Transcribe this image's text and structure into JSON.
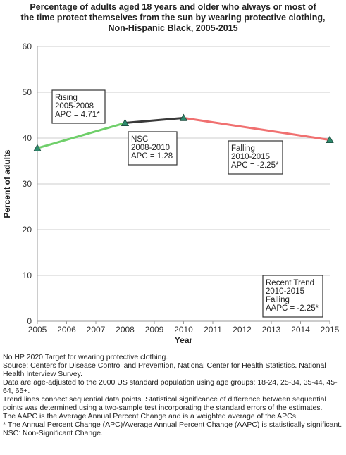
{
  "title_lines": [
    "Percentage of adults aged 18 years and older who always or most of",
    "the time protect themselves from the sun by wearing protective clothing,",
    "Non-Hispanic Black,  2005-2015"
  ],
  "chart_data": {
    "type": "line",
    "title": "Percentage of adults aged 18 years and older who always or most of the time protect themselves from the sun by wearing protective clothing, Non-Hispanic Black,  2005-2015",
    "xlabel": "Year",
    "ylabel": "Percent of adults",
    "xlim": [
      2005,
      2015
    ],
    "ylim": [
      0,
      60
    ],
    "x_ticks": [
      2005,
      2006,
      2007,
      2008,
      2009,
      2010,
      2011,
      2012,
      2013,
      2014,
      2015
    ],
    "y_ticks": [
      0,
      10,
      20,
      30,
      40,
      50,
      60
    ],
    "grid": true,
    "points": [
      {
        "x": 2005,
        "y": 37.8
      },
      {
        "x": 2008,
        "y": 43.3
      },
      {
        "x": 2010,
        "y": 44.4
      },
      {
        "x": 2015,
        "y": 39.6
      }
    ],
    "trend_segments": [
      {
        "x": [
          2005,
          2008
        ],
        "y": [
          37.8,
          43.3
        ],
        "color": "#6fcf6a"
      },
      {
        "x": [
          2008,
          2010
        ],
        "y": [
          43.3,
          44.4
        ],
        "color": "#3a3a3a"
      },
      {
        "x": [
          2010,
          2015
        ],
        "y": [
          44.4,
          39.6
        ],
        "color": "#f07070"
      }
    ],
    "annotations": [
      {
        "lines": [
          "Rising",
          "2005-2008",
          "APC =  4.71*"
        ],
        "bordered": true
      },
      {
        "lines": [
          "NSC",
          "2008-2010",
          "APC =  1.28"
        ],
        "bordered": true
      },
      {
        "lines": [
          "Falling",
          "2010-2015",
          "APC = -2.25*"
        ],
        "bordered": true
      },
      {
        "lines": [
          "Recent Trend",
          "2010-2015",
          "Falling",
          "AAPC = -2.25*"
        ],
        "bordered": true
      }
    ]
  },
  "colors": {
    "rising": "#6fcf6a",
    "nsc": "#3a3a3a",
    "falling": "#f07070",
    "marker_fill": "#2e8b6e",
    "grid": "#cccccc"
  },
  "footnotes": [
    "No HP 2020 Target for wearing protective clothing.",
    "Source: Centers for Disease Control and Prevention, National Center for Health Statistics. National Health Interview Survey.",
    "Data are age-adjusted to the 2000 US standard population using age groups: 18-24, 25-34, 35-44, 45-64, 65+.",
    "Trend lines connect sequential data points. Statistical significance of difference between sequential points was determined using a two-sample test incorporating the standard errors of the estimates.",
    "The AAPC is the Average Annual Percent Change and is a weighted average of the APCs.",
    "* The Annual Percent Change (APC)/Average Annual Percent Change (AAPC) is statistically significant.",
    "NSC: Non-Significant Change."
  ]
}
